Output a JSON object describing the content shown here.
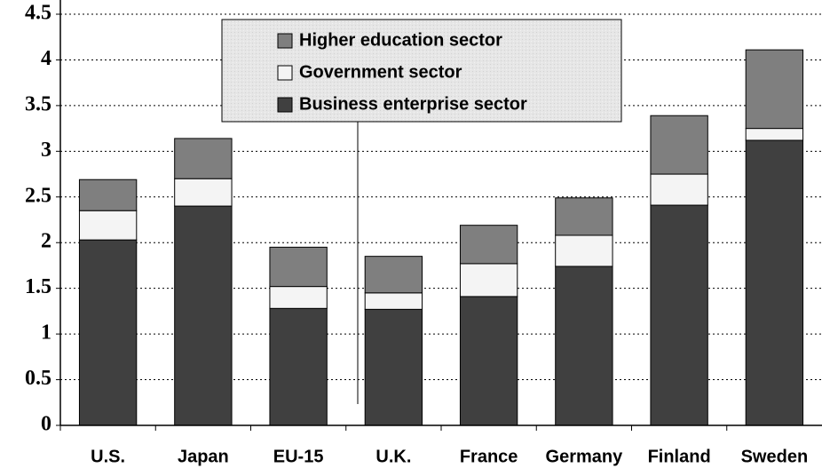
{
  "chart_data": {
    "type": "stacked_bar",
    "categories": [
      "U.S.",
      "Japan",
      "EU-15",
      "U.K.",
      "France",
      "Germany",
      "Finland",
      "Sweden"
    ],
    "series": [
      {
        "name": "Business enterprise sector",
        "color": "#404040",
        "values": [
          2.03,
          2.4,
          1.28,
          1.27,
          1.41,
          1.74,
          2.41,
          3.12
        ]
      },
      {
        "name": "Government sector",
        "color": "#f4f4f4",
        "values": [
          0.32,
          0.3,
          0.24,
          0.18,
          0.36,
          0.34,
          0.34,
          0.13
        ]
      },
      {
        "name": "Higher education sector",
        "color": "#7f7f7f",
        "values": [
          0.34,
          0.44,
          0.43,
          0.4,
          0.42,
          0.41,
          0.64,
          0.86
        ]
      }
    ],
    "ylim": [
      0,
      4.5
    ],
    "yticks": [
      0,
      0.5,
      1,
      1.5,
      2,
      2.5,
      3,
      3.5,
      4,
      4.5
    ],
    "grid": true,
    "legend": "upper center"
  }
}
